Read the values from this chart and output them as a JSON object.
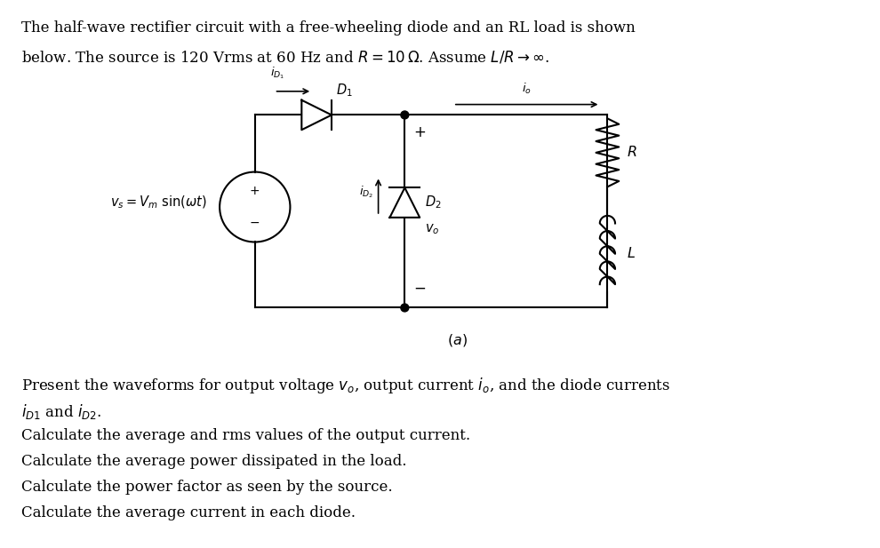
{
  "bg_color": "#ffffff",
  "fig_width": 9.9,
  "fig_height": 6.17,
  "title_text1": "The half-wave rectifier circuit with a free-wheeling diode and an RL load is shown",
  "title_text2": "below. The source is 120 Vrms at 60 Hz and $R = 10\\,\\Omega$. Assume $L/R \\rightarrow \\infty$.",
  "body_lines": [
    "Present the waveforms for output voltage $v_o$, output current $i_o$, and the diode currents",
    "$i_{D1}$ and $i_{D2}$.",
    "Calculate the average and rms values of the output current.",
    "Calculate the average power dissipated in the load.",
    "Calculate the power factor as seen by the source.",
    "Calculate the average current in each diode."
  ],
  "caption": "$(a)$"
}
